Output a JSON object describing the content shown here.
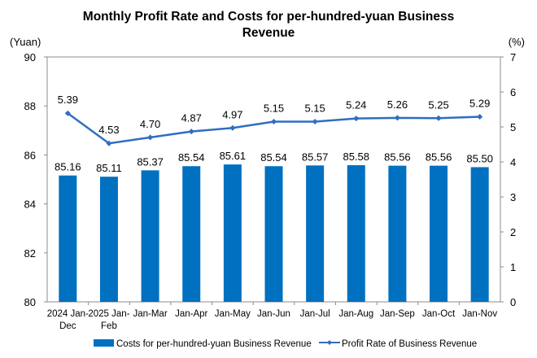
{
  "chart_data": {
    "type": "bar+line",
    "title_lines": [
      "Monthly Profit Rate and Costs for per-hundred-yuan Business",
      "Revenue"
    ],
    "categories": [
      [
        "2024 Jan-",
        "Dec"
      ],
      [
        "2025 Jan-",
        "Feb"
      ],
      [
        "Jan-Mar"
      ],
      [
        "Jan-Apr"
      ],
      [
        "Jan-May"
      ],
      [
        "Jan-Jun"
      ],
      [
        "Jan-Jul"
      ],
      [
        "Jan-Aug"
      ],
      [
        "Jan-Sep"
      ],
      [
        "Jan-Oct"
      ],
      [
        "Jan-Nov"
      ]
    ],
    "left_axis": {
      "unit_label": "(Yuan)",
      "range": [
        80,
        90
      ],
      "ticks": [
        80,
        82,
        84,
        86,
        88,
        90
      ]
    },
    "right_axis": {
      "unit_label": "(%)",
      "range": [
        0,
        7
      ],
      "ticks": [
        0,
        1,
        2,
        3,
        4,
        5,
        6,
        7
      ]
    },
    "series": [
      {
        "name": "Costs for per-hundred-yuan Business Revenue",
        "type": "bar",
        "axis": "left",
        "color": "#0070C0",
        "values": [
          85.16,
          85.11,
          85.37,
          85.54,
          85.61,
          85.54,
          85.57,
          85.58,
          85.56,
          85.56,
          85.5
        ],
        "labels": [
          "85.16",
          "85.11",
          "85.37",
          "85.54",
          "85.61",
          "85.54",
          "85.57",
          "85.58",
          "85.56",
          "85.56",
          "85.50"
        ]
      },
      {
        "name": "Profit Rate of Business Revenue",
        "type": "line",
        "axis": "right",
        "color": "#2F6EBF",
        "values": [
          5.39,
          4.53,
          4.7,
          4.87,
          4.97,
          5.15,
          5.15,
          5.24,
          5.26,
          5.25,
          5.29
        ],
        "labels": [
          "5.39",
          "4.53",
          "4.70",
          "4.87",
          "4.97",
          "5.15",
          "5.15",
          "5.24",
          "5.26",
          "5.25",
          "5.29"
        ]
      }
    ],
    "legend_position": "bottom",
    "grid": false
  }
}
